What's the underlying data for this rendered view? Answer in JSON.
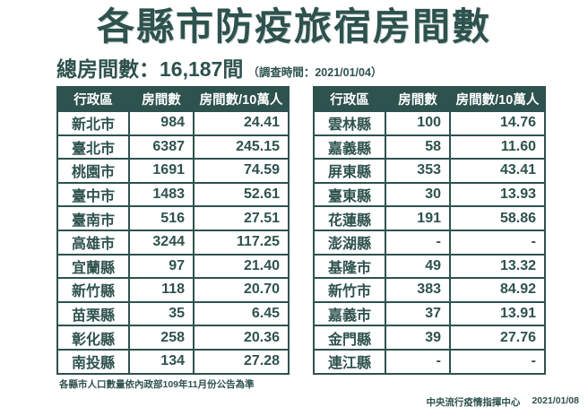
{
  "header": {
    "total_label": "總房間數：16,187間",
    "survey_note": "（調查時間：2021/01/04）"
  },
  "footer": {
    "footnote": "各縣市人口數量依內政部109年11月份公告為準",
    "agency": "中央流行疫情指揮中心",
    "date": "2021/01/08"
  },
  "colors": {
    "primary_teal": "#2e524e",
    "background": "#ffffff",
    "header_text": "#ffffff"
  },
  "chart_data": {
    "type": "table",
    "title": "各縣市防疫旅宿房間數",
    "total_rooms": 16187,
    "survey_date": "2021/01/04",
    "columns": [
      "行政區",
      "房間數",
      "房間數/10萬人"
    ],
    "left_rows": [
      [
        "新北市",
        "984",
        "24.41"
      ],
      [
        "臺北市",
        "6387",
        "245.15"
      ],
      [
        "桃園市",
        "1691",
        "74.59"
      ],
      [
        "臺中市",
        "1483",
        "52.61"
      ],
      [
        "臺南市",
        "516",
        "27.51"
      ],
      [
        "高雄市",
        "3244",
        "117.25"
      ],
      [
        "宜蘭縣",
        "97",
        "21.40"
      ],
      [
        "新竹縣",
        "118",
        "20.70"
      ],
      [
        "苗栗縣",
        "35",
        "6.45"
      ],
      [
        "彰化縣",
        "258",
        "20.36"
      ],
      [
        "南投縣",
        "134",
        "27.28"
      ]
    ],
    "right_rows": [
      [
        "雲林縣",
        "100",
        "14.76"
      ],
      [
        "嘉義縣",
        "58",
        "11.60"
      ],
      [
        "屏東縣",
        "353",
        "43.41"
      ],
      [
        "臺東縣",
        "30",
        "13.93"
      ],
      [
        "花蓮縣",
        "191",
        "58.86"
      ],
      [
        "澎湖縣",
        "-",
        "-"
      ],
      [
        "基隆市",
        "49",
        "13.32"
      ],
      [
        "新竹市",
        "383",
        "84.92"
      ],
      [
        "嘉義市",
        "37",
        "13.91"
      ],
      [
        "金門縣",
        "39",
        "27.76"
      ],
      [
        "連江縣",
        "-",
        "-"
      ]
    ]
  }
}
